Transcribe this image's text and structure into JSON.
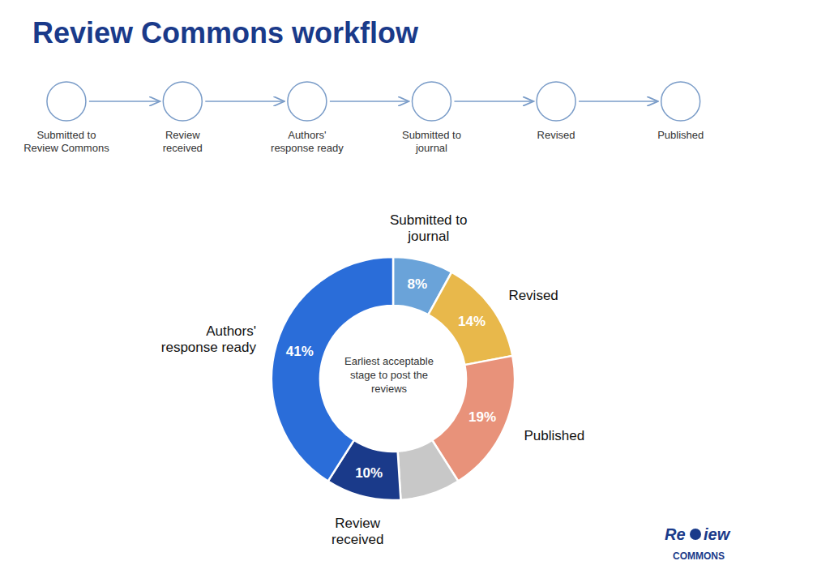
{
  "chart_data": {
    "type": "pie",
    "title": "Review Commons workflow",
    "title_color": "#1a3a8a",
    "categories": [
      "Submitted to\njournal",
      "Revised",
      "Published",
      null,
      "Review\nreceived",
      "Authors'\nresponse ready"
    ],
    "values": [
      8,
      14,
      19,
      8,
      10,
      41
    ],
    "value_labels": [
      "8%",
      "14%",
      "19%",
      null,
      "10%",
      "41%"
    ],
    "colors": [
      "#6aa3d9",
      "#e8b84b",
      "#e8927a",
      "#c8c8c8",
      "#1a3a8a",
      "#2a6dd9"
    ],
    "data_labels": true,
    "annotations": [
      "Earliest acceptable\nstage to post the\nreviews"
    ],
    "workflow": [
      "Submitted to\nReview Commons",
      "Review\nreceived",
      "Authors'\nresponse ready",
      "Submitted to\njournal",
      "Revised",
      "Published"
    ],
    "icon_color": "#7a9cc8",
    "logo": [
      "Re",
      "iew",
      "COMMONS"
    ]
  }
}
